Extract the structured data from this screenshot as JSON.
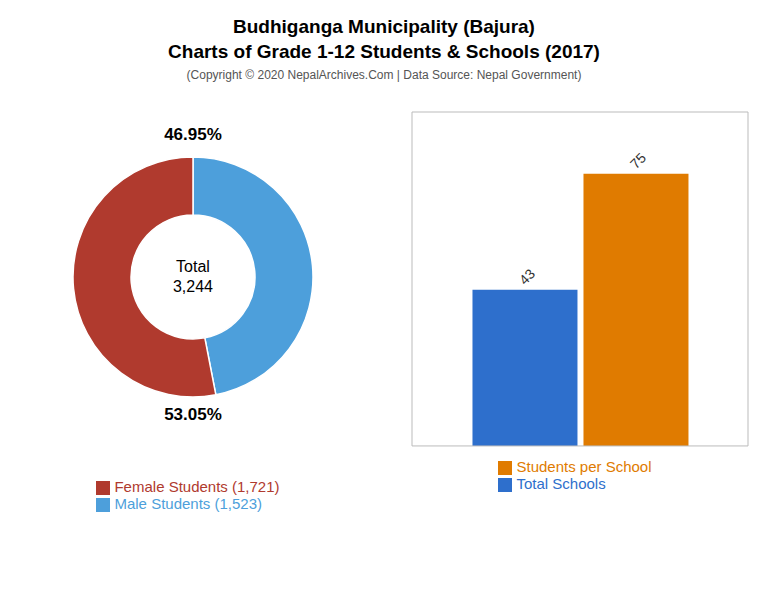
{
  "chart_data": [
    {
      "type": "pie",
      "title": "Budhiganga Municipality (Bajura)\nCharts of Grade 1-12 Students & Schools (2017)",
      "subtitle": "(Copyright © 2020 NepalArchives.Com | Data Source: Nepal Government)",
      "categories": [
        "Male Students (1,523)",
        "Female Students (1,721)"
      ],
      "values": [
        46.95,
        53.05
      ],
      "value_labels": [
        "46.95%",
        "53.05%"
      ],
      "colors": [
        "#4d9fdb",
        "#b03a2e"
      ],
      "annotations": [
        "Total",
        "3,244"
      ],
      "data_labels": true,
      "legend": "bottom"
    },
    {
      "type": "bar",
      "categories": [
        null
      ],
      "series": [
        {
          "name": "Total Schools",
          "color": "#2e6fcc",
          "values": [
            43
          ]
        },
        {
          "name": "Students per School",
          "color": "#e07b00",
          "values": [
            75
          ]
        }
      ],
      "ylim": [
        0,
        92
      ],
      "tick_labels": false,
      "data_labels": true,
      "legend": "bottom"
    }
  ]
}
